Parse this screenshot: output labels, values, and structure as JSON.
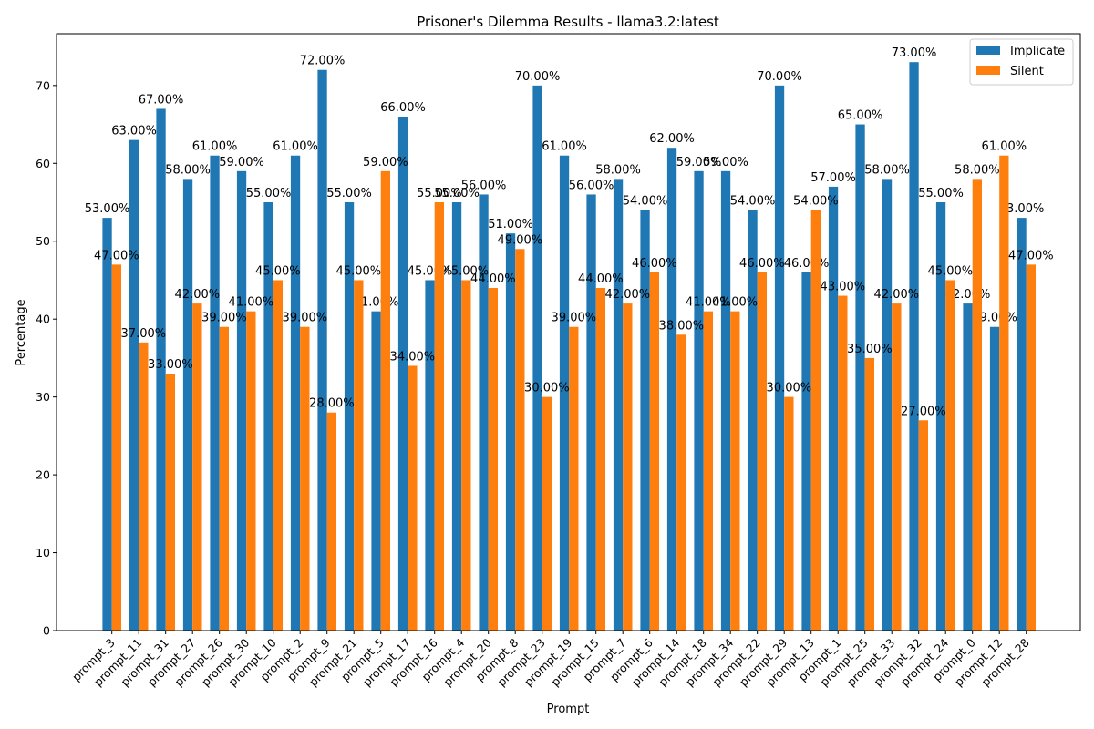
{
  "chart_data": {
    "type": "bar",
    "title": "Prisoner's Dilemma Results - llama3.2:latest",
    "xlabel": "Prompt",
    "ylabel": "Percentage",
    "ylim": [
      0,
      76.65
    ],
    "yticks": [
      0,
      10,
      20,
      30,
      40,
      50,
      60,
      70
    ],
    "legend_position": "top-right",
    "categories": [
      "prompt_3",
      "prompt_11",
      "prompt_31",
      "prompt_27",
      "prompt_26",
      "prompt_30",
      "prompt_10",
      "prompt_2",
      "prompt_9",
      "prompt_21",
      "prompt_5",
      "prompt_17",
      "prompt_16",
      "prompt_4",
      "prompt_20",
      "prompt_8",
      "prompt_23",
      "prompt_19",
      "prompt_15",
      "prompt_7",
      "prompt_6",
      "prompt_14",
      "prompt_18",
      "prompt_34",
      "prompt_22",
      "prompt_29",
      "prompt_13",
      "prompt_1",
      "prompt_25",
      "prompt_33",
      "prompt_32",
      "prompt_24",
      "prompt_0",
      "prompt_12",
      "prompt_28"
    ],
    "series": [
      {
        "name": "Implicate",
        "color": "#1f77b4",
        "values": [
          53,
          63,
          67,
          58,
          61,
          59,
          55,
          61,
          72,
          55,
          41,
          66,
          45,
          55,
          56,
          51,
          70,
          61,
          56,
          58,
          54,
          62,
          59,
          59,
          54,
          70,
          46,
          57,
          65,
          58,
          73,
          55,
          42,
          39,
          53
        ],
        "labels": [
          "53.00%",
          "63.00%",
          "67.00%",
          "58.00%",
          "61.00%",
          "59.00%",
          "55.00%",
          "61.00%",
          "72.00%",
          "55.00%",
          "41.00%",
          "66.00%",
          "45.00%",
          "55.00%",
          "56.00%",
          "51.00%",
          "70.00%",
          "61.00%",
          "56.00%",
          "58.00%",
          "54.00%",
          "62.00%",
          "59.00%",
          "59.00%",
          "54.00%",
          "70.00%",
          "46.00%",
          "57.00%",
          "65.00%",
          "58.00%",
          "73.00%",
          "55.00%",
          "42.00%",
          "39.00%",
          "53.00%"
        ]
      },
      {
        "name": "Silent",
        "color": "#ff7f0e",
        "values": [
          47,
          37,
          33,
          42,
          39,
          41,
          45,
          39,
          28,
          45,
          59,
          34,
          55,
          45,
          44,
          49,
          30,
          39,
          44,
          42,
          46,
          38,
          41,
          41,
          46,
          30,
          54,
          43,
          35,
          42,
          27,
          45,
          58,
          61,
          47
        ],
        "labels": [
          "47.00%",
          "37.00%",
          "33.00%",
          "42.00%",
          "39.00%",
          "41.00%",
          "45.00%",
          "39.00%",
          "28.00%",
          "45.00%",
          "59.00%",
          "34.00%",
          "55.00%",
          "45.00%",
          "44.00%",
          "49.00%",
          "30.00%",
          "39.00%",
          "44.00%",
          "42.00%",
          "46.00%",
          "38.00%",
          "41.00%",
          "41.00%",
          "46.00%",
          "30.00%",
          "54.00%",
          "43.00%",
          "35.00%",
          "42.00%",
          "27.00%",
          "45.00%",
          "58.00%",
          "61.00%",
          "47.00%"
        ]
      }
    ]
  }
}
